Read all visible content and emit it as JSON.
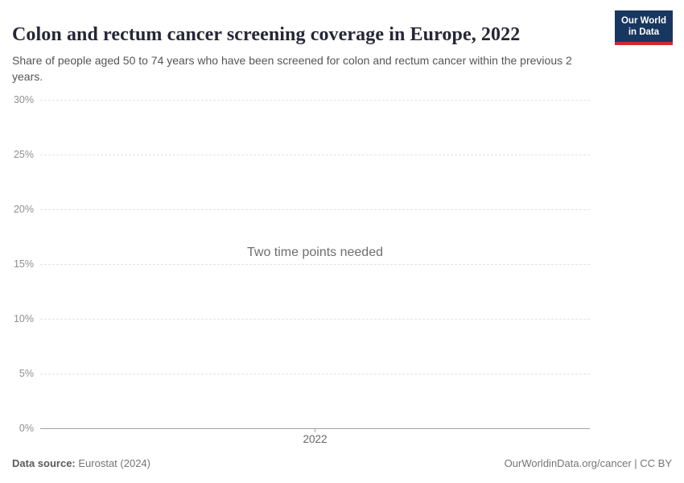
{
  "colors": {
    "logo_bg": "#18375f",
    "logo_underline": "#d1272e",
    "title": "#272636",
    "subtitle": "#555555",
    "axis_tick_label": "#8f8f8f",
    "gridline": "#e3e3e3",
    "zero_line": "#a3a3a3",
    "empty_message": "#6e6e6e",
    "footer_text": "#757575"
  },
  "header": {
    "title": "Colon and rectum cancer screening coverage in Europe, 2022",
    "subtitle": "Share of people aged 50 to 74 years who have been screened for colon and rectum cancer within the previous 2 years.",
    "logo_line1": "Our World",
    "logo_line2": "in Data"
  },
  "chart_data": {
    "type": "line",
    "title": "Colon and rectum cancer screening coverage in Europe, 2022",
    "xlabel": "",
    "ylabel": "",
    "ylim": [
      0,
      30
    ],
    "ytick_interval": 5,
    "yticks": [
      "0%",
      "5%",
      "10%",
      "15%",
      "20%",
      "25%",
      "30%"
    ],
    "xticks": [
      "2022"
    ],
    "series": [],
    "empty_state_message": "Two time points needed",
    "grid": "horizontal-dashed",
    "legend": "none"
  },
  "footer": {
    "source_label": "Data source:",
    "source_value": "Eurostat (2024)",
    "citation": "OurWorldinData.org/cancer | CC BY"
  }
}
